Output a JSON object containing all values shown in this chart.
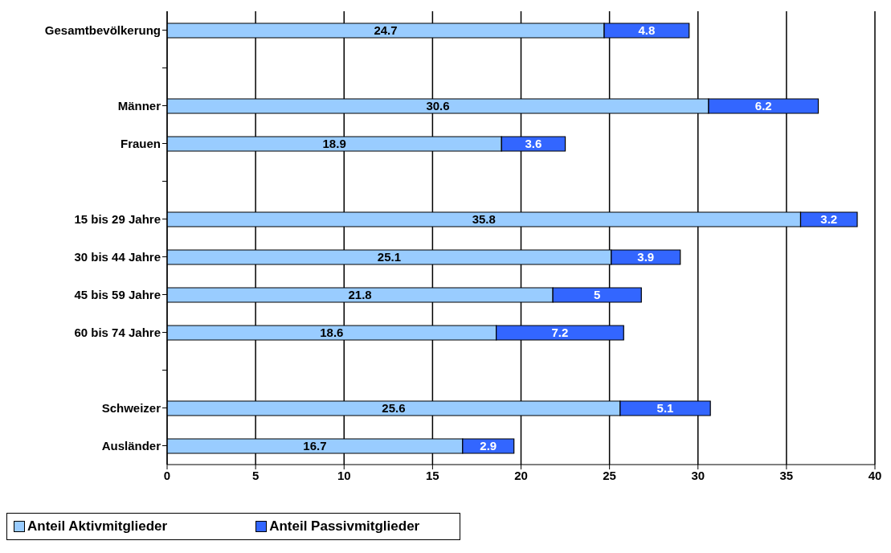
{
  "chart_data": {
    "type": "bar",
    "orientation": "horizontal",
    "stacked": true,
    "categories": [
      "Gesamtbevölkerung",
      null,
      "Männer",
      "Frauen",
      null,
      "15 bis 29 Jahre",
      "30 bis 44 Jahre",
      "45 bis 59 Jahre",
      "60 bis 74 Jahre",
      null,
      "Schweizer",
      "Ausländer"
    ],
    "series": [
      {
        "name": "Anteil Aktivmitglieder",
        "color": "#99ccff",
        "values": [
          24.7,
          null,
          30.6,
          18.9,
          null,
          35.8,
          25.1,
          21.8,
          18.6,
          null,
          25.6,
          16.7
        ]
      },
      {
        "name": "Anteil Passivmitglieder",
        "color": "#3366ff",
        "values": [
          4.8,
          null,
          6.2,
          3.6,
          null,
          3.2,
          3.9,
          5,
          7.2,
          null,
          5.1,
          2.9
        ]
      }
    ],
    "xlim": [
      0,
      40
    ],
    "xticks": [
      0,
      5,
      10,
      15,
      20,
      25,
      30,
      35,
      40
    ],
    "grid": "x",
    "legend": "bottom",
    "data_labels": true
  }
}
